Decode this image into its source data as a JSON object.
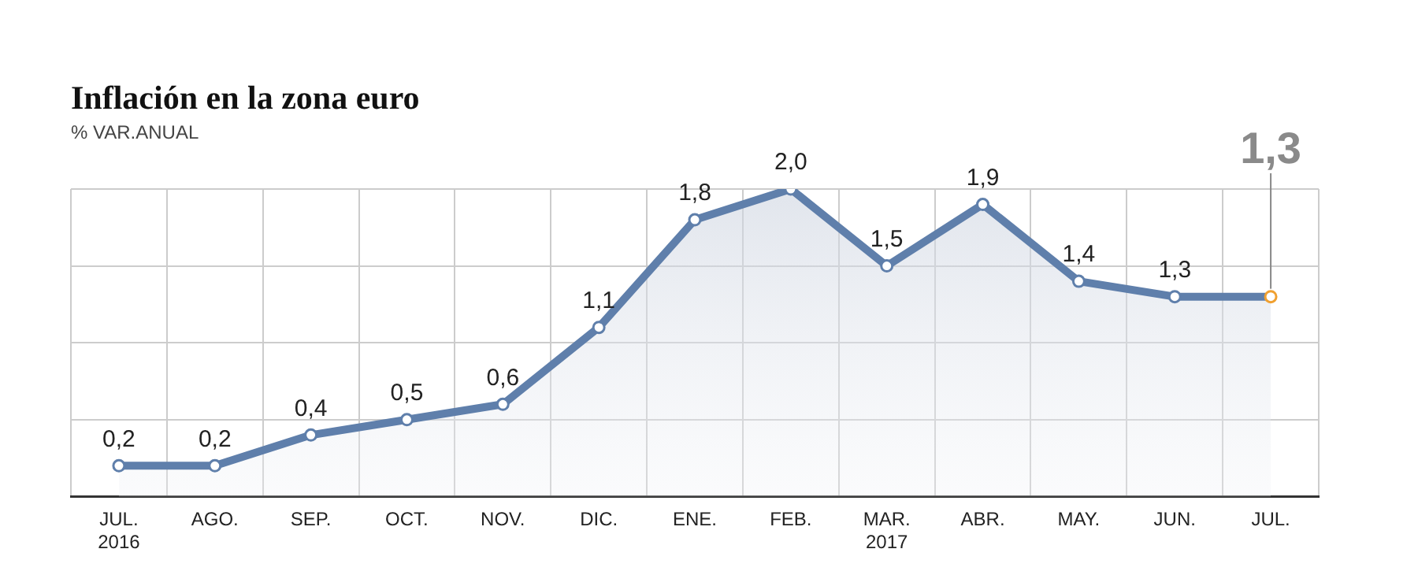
{
  "chart_data": {
    "type": "area",
    "title": "Inflación en la zona euro",
    "subtitle": "% VAR.ANUAL",
    "categories": [
      "JUL.\n2016",
      "AGO.",
      "SEP.",
      "OCT.",
      "NOV.",
      "DIC.",
      "ENE.",
      "FEB.",
      "MAR.\n2017",
      "ABR.",
      "MAY.",
      "JUN.",
      "JUL."
    ],
    "series": [
      {
        "color": "#5f7fab",
        "colors": [
          "#5f7fab",
          "#5f7fab",
          "#5f7fab",
          "#5f7fab",
          "#5f7fab",
          "#5f7fab",
          "#5f7fab",
          "#5f7fab",
          "#5f7fab",
          "#5f7fab",
          "#5f7fab",
          "#5f7fab",
          "#f0a030"
        ],
        "values": [
          0.2,
          0.2,
          0.4,
          0.5,
          0.6,
          1.1,
          1.8,
          2.0,
          1.5,
          1.9,
          1.4,
          1.3,
          1.3
        ],
        "value_labels": [
          "0,2",
          "0,2",
          "0,4",
          "0,5",
          "0,6",
          "1,1",
          "1,8",
          "2,0",
          "1,5",
          "1,9",
          "1,4",
          "1,3",
          "1,3"
        ]
      }
    ],
    "ylim": [
      0,
      2
    ],
    "grid": true,
    "legend": false,
    "marker": "circle",
    "line_style": "solid",
    "tick_labels": "x"
  }
}
